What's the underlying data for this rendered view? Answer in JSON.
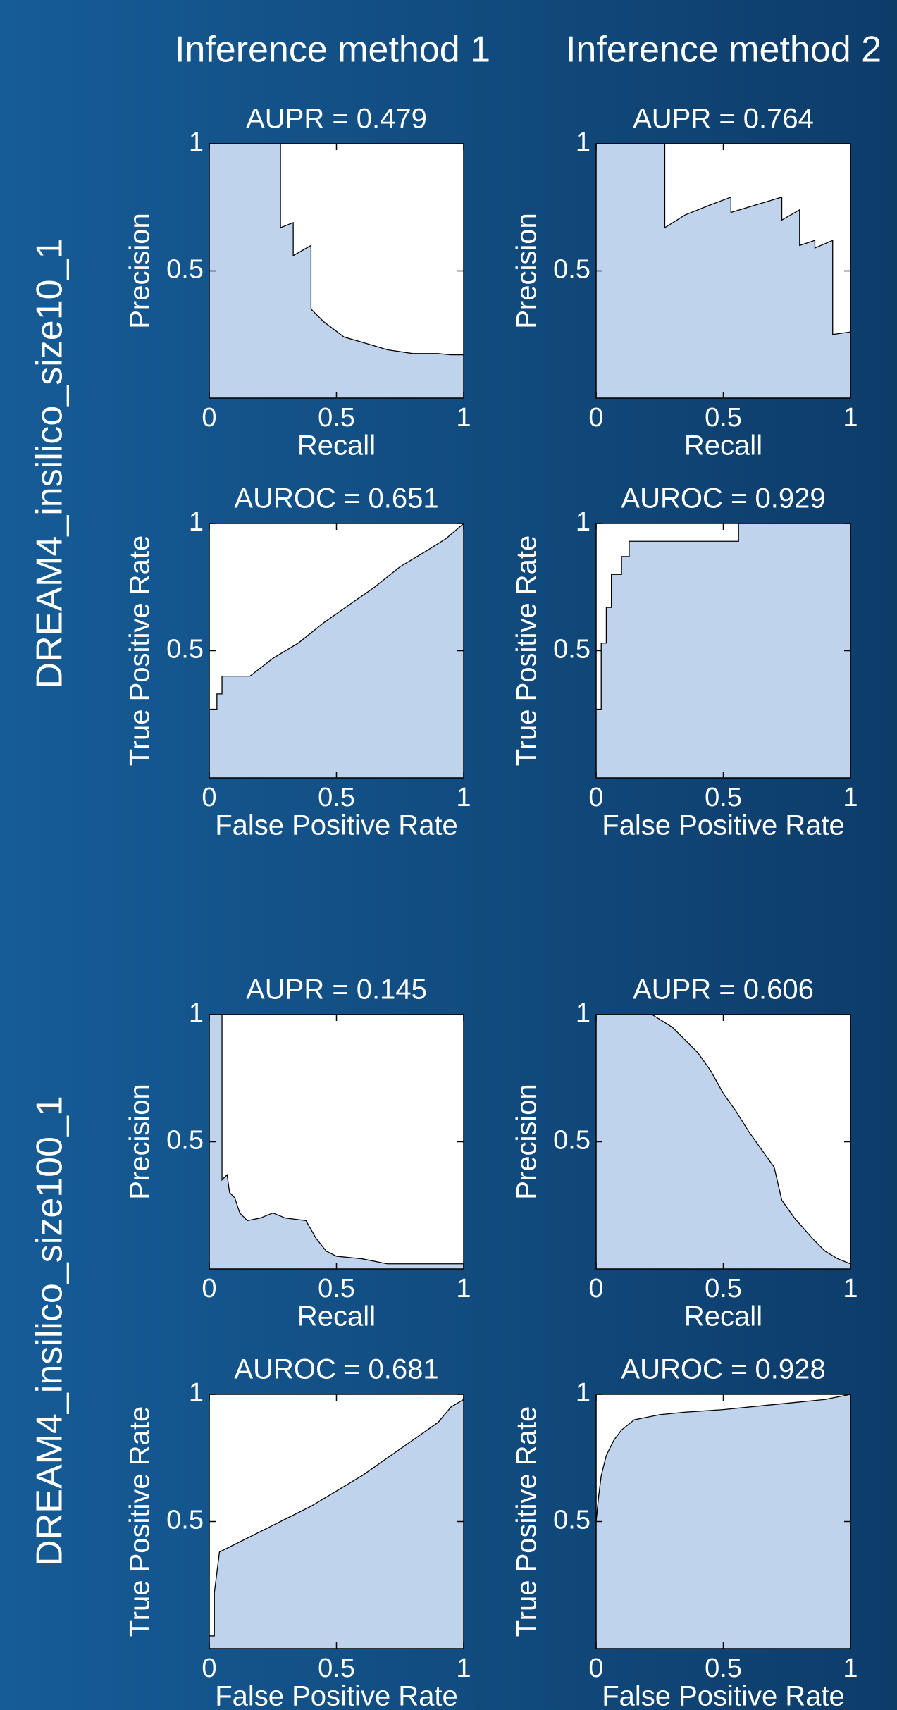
{
  "column_titles": [
    "Inference method 1",
    "Inference method 2"
  ],
  "row_titles": [
    "DREAM4_insilico_size10_1",
    "DREAM4_insilico_size100_1"
  ],
  "chart_data": [
    {
      "type": "area",
      "title": "AUPR = 0.479",
      "x_label": "Recall",
      "y_label": "Precision",
      "color": "#c0d3ec",
      "x": [
        0,
        0.28,
        0.28,
        0.33,
        0.33,
        0.4,
        0.4,
        0.45,
        0.53,
        0.6,
        0.7,
        0.8,
        0.9,
        0.95,
        1
      ],
      "values": [
        1,
        1,
        0.67,
        0.69,
        0.56,
        0.6,
        0.35,
        0.3,
        0.24,
        0.22,
        0.19,
        0.175,
        0.175,
        0.17,
        0.17
      ],
      "xlim": [
        0,
        1
      ],
      "ylim": [
        0,
        1
      ],
      "xticks": [
        0,
        0.5,
        1
      ],
      "yticks": [
        0.5,
        1
      ]
    },
    {
      "type": "area",
      "title": "AUPR = 0.764",
      "x_label": "Recall",
      "y_label": "Precision",
      "color": "#c0d3ec",
      "x": [
        0,
        0.27,
        0.27,
        0.35,
        0.45,
        0.53,
        0.53,
        0.73,
        0.73,
        0.8,
        0.8,
        0.86,
        0.86,
        0.93,
        0.93,
        1
      ],
      "values": [
        1,
        1,
        0.67,
        0.72,
        0.76,
        0.79,
        0.73,
        0.79,
        0.7,
        0.74,
        0.6,
        0.62,
        0.59,
        0.62,
        0.25,
        0.26
      ],
      "xlim": [
        0,
        1
      ],
      "ylim": [
        0,
        1
      ],
      "xticks": [
        0,
        0.5,
        1
      ],
      "yticks": [
        0.5,
        1
      ]
    },
    {
      "type": "area",
      "title": "AUROC = 0.651",
      "x_label": "False Positive Rate",
      "y_label": "True Positive Rate",
      "color": "#c0d3ec",
      "x": [
        0,
        0.03,
        0.03,
        0.05,
        0.05,
        0.16,
        0.25,
        0.35,
        0.45,
        0.55,
        0.65,
        0.75,
        0.85,
        0.93,
        1
      ],
      "values": [
        0.27,
        0.27,
        0.33,
        0.33,
        0.4,
        0.4,
        0.47,
        0.53,
        0.61,
        0.68,
        0.75,
        0.83,
        0.89,
        0.94,
        1
      ],
      "xlim": [
        0,
        1
      ],
      "ylim": [
        0,
        1
      ],
      "xticks": [
        0,
        0.5,
        1
      ],
      "yticks": [
        0.5,
        1
      ]
    },
    {
      "type": "area",
      "title": "AUROC = 0.929",
      "x_label": "False Positive Rate",
      "y_label": "True Positive Rate",
      "color": "#c0d3ec",
      "x": [
        0,
        0.02,
        0.02,
        0.04,
        0.04,
        0.06,
        0.06,
        0.1,
        0.1,
        0.13,
        0.13,
        0.56,
        0.56,
        1
      ],
      "values": [
        0.27,
        0.27,
        0.53,
        0.53,
        0.67,
        0.67,
        0.8,
        0.8,
        0.87,
        0.87,
        0.93,
        0.93,
        1,
        1
      ],
      "xlim": [
        0,
        1
      ],
      "ylim": [
        0,
        1
      ],
      "xticks": [
        0,
        0.5,
        1
      ],
      "yticks": [
        0.5,
        1
      ]
    },
    {
      "type": "area",
      "title": "AUPR = 0.145",
      "x_label": "Recall",
      "y_label": "Precision",
      "color": "#c0d3ec",
      "x": [
        0,
        0.05,
        0.05,
        0.07,
        0.08,
        0.1,
        0.12,
        0.15,
        0.2,
        0.25,
        0.3,
        0.38,
        0.42,
        0.46,
        0.5,
        0.6,
        0.7,
        1
      ],
      "values": [
        1,
        1,
        0.35,
        0.37,
        0.3,
        0.28,
        0.22,
        0.19,
        0.2,
        0.22,
        0.2,
        0.19,
        0.12,
        0.07,
        0.05,
        0.04,
        0.02,
        0.02
      ],
      "xlim": [
        0,
        1
      ],
      "ylim": [
        0,
        1
      ],
      "xticks": [
        0,
        0.5,
        1
      ],
      "yticks": [
        0.5,
        1
      ]
    },
    {
      "type": "area",
      "title": "AUPR = 0.606",
      "x_label": "Recall",
      "y_label": "Precision",
      "color": "#c0d3ec",
      "x": [
        0,
        0.22,
        0.3,
        0.35,
        0.4,
        0.45,
        0.5,
        0.55,
        0.6,
        0.65,
        0.7,
        0.73,
        0.78,
        0.85,
        0.9,
        0.95,
        1
      ],
      "values": [
        1,
        1,
        0.95,
        0.9,
        0.85,
        0.78,
        0.69,
        0.62,
        0.54,
        0.47,
        0.4,
        0.27,
        0.2,
        0.12,
        0.07,
        0.04,
        0.02
      ],
      "xlim": [
        0,
        1
      ],
      "ylim": [
        0,
        1
      ],
      "xticks": [
        0,
        0.5,
        1
      ],
      "yticks": [
        0.5,
        1
      ]
    },
    {
      "type": "area",
      "title": "AUROC = 0.681",
      "x_label": "False Positive Rate",
      "y_label": "True Positive Rate",
      "color": "#c0d3ec",
      "x": [
        0,
        0.02,
        0.02,
        0.03,
        0.04,
        0.1,
        0.2,
        0.3,
        0.4,
        0.5,
        0.6,
        0.7,
        0.8,
        0.9,
        0.95,
        1
      ],
      "values": [
        0.05,
        0.05,
        0.22,
        0.3,
        0.38,
        0.41,
        0.46,
        0.51,
        0.56,
        0.62,
        0.68,
        0.75,
        0.82,
        0.89,
        0.95,
        0.98
      ],
      "xlim": [
        0,
        1
      ],
      "ylim": [
        0,
        1
      ],
      "xticks": [
        0,
        0.5,
        1
      ],
      "yticks": [
        0.5,
        1
      ]
    },
    {
      "type": "area",
      "title": "AUROC = 0.928",
      "x_label": "False Positive Rate",
      "y_label": "True Positive Rate",
      "color": "#c0d3ec",
      "x": [
        0,
        0.01,
        0.02,
        0.04,
        0.07,
        0.1,
        0.15,
        0.25,
        0.35,
        0.5,
        0.7,
        0.9,
        1
      ],
      "values": [
        0.5,
        0.6,
        0.68,
        0.76,
        0.82,
        0.86,
        0.9,
        0.92,
        0.93,
        0.94,
        0.96,
        0.98,
        1
      ],
      "xlim": [
        0,
        1
      ],
      "ylim": [
        0,
        1
      ],
      "xticks": [
        0,
        0.5,
        1
      ],
      "yticks": [
        0.5,
        1
      ]
    }
  ]
}
